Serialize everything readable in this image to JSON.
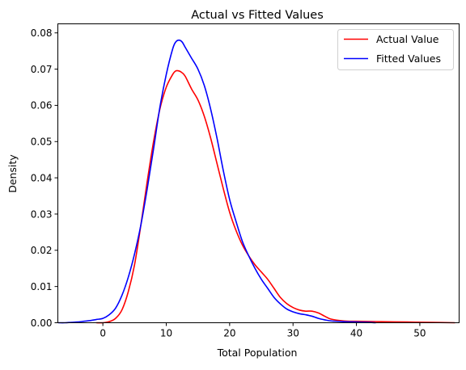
{
  "chart_data": {
    "type": "line",
    "title": "Actual vs Fitted Values",
    "xlabel": "Total Population",
    "ylabel": "Density",
    "xlim": [
      -7.1,
      56.2
    ],
    "ylim": [
      0,
      0.0825
    ],
    "x_ticks": [
      0,
      10,
      20,
      30,
      40,
      50
    ],
    "x_tick_labels": [
      "0",
      "10",
      "20",
      "30",
      "40",
      "50"
    ],
    "y_ticks": [
      0,
      0.01,
      0.02,
      0.03,
      0.04,
      0.05,
      0.06,
      0.07,
      0.08
    ],
    "y_tick_labels": [
      "0.00",
      "0.01",
      "0.02",
      "0.03",
      "0.04",
      "0.05",
      "0.06",
      "0.07",
      "0.08"
    ],
    "grid": false,
    "legend": "top-right",
    "series": [
      {
        "name": "Actual Value",
        "color": "#ff0000",
        "x": [
          -1,
          0,
          1,
          2,
          3,
          4,
          5,
          6,
          7,
          8,
          9,
          10,
          11,
          11.5,
          12,
          12.5,
          13,
          14,
          15,
          16,
          17,
          18,
          19,
          20,
          21,
          22,
          23,
          24,
          25,
          26,
          27,
          28,
          29,
          30,
          31,
          32,
          33,
          34,
          35,
          36,
          38,
          40,
          44,
          48,
          52,
          55.5
        ],
        "y": [
          0.0,
          0.0,
          0.0003,
          0.0012,
          0.0035,
          0.0085,
          0.016,
          0.027,
          0.039,
          0.05,
          0.059,
          0.065,
          0.0685,
          0.0695,
          0.0695,
          0.069,
          0.068,
          0.0645,
          0.0615,
          0.057,
          0.051,
          0.044,
          0.037,
          0.0305,
          0.0255,
          0.0215,
          0.0185,
          0.016,
          0.014,
          0.012,
          0.0095,
          0.007,
          0.0053,
          0.0042,
          0.0035,
          0.0032,
          0.0032,
          0.0027,
          0.0018,
          0.001,
          0.0005,
          0.0004,
          0.0003,
          0.0002,
          0.0001,
          0.0
        ]
      },
      {
        "name": "Fitted Values",
        "color": "#0000ff",
        "x": [
          -7,
          -6,
          -5,
          -4,
          -3,
          -2,
          -1,
          0,
          1,
          2,
          3,
          4,
          5,
          6,
          7,
          8,
          9,
          10,
          11,
          11.5,
          12,
          12.5,
          13,
          13.5,
          14,
          15,
          16,
          17,
          18,
          19,
          20,
          21,
          22,
          23,
          24,
          25,
          26,
          27,
          28,
          29,
          30,
          31,
          32,
          33,
          34,
          35,
          36,
          38,
          40,
          42,
          43
        ],
        "y": [
          0.0,
          0.0,
          0.0001,
          0.0002,
          0.0004,
          0.0006,
          0.0009,
          0.0012,
          0.0022,
          0.004,
          0.0075,
          0.0125,
          0.019,
          0.027,
          0.037,
          0.048,
          0.0595,
          0.0685,
          0.0755,
          0.0775,
          0.078,
          0.0775,
          0.076,
          0.0745,
          0.073,
          0.07,
          0.0655,
          0.059,
          0.051,
          0.042,
          0.034,
          0.028,
          0.0225,
          0.0185,
          0.015,
          0.012,
          0.0095,
          0.007,
          0.0052,
          0.0038,
          0.003,
          0.0025,
          0.0022,
          0.0018,
          0.0012,
          0.0008,
          0.0005,
          0.0003,
          0.0002,
          0.0001,
          0.0
        ]
      }
    ]
  }
}
